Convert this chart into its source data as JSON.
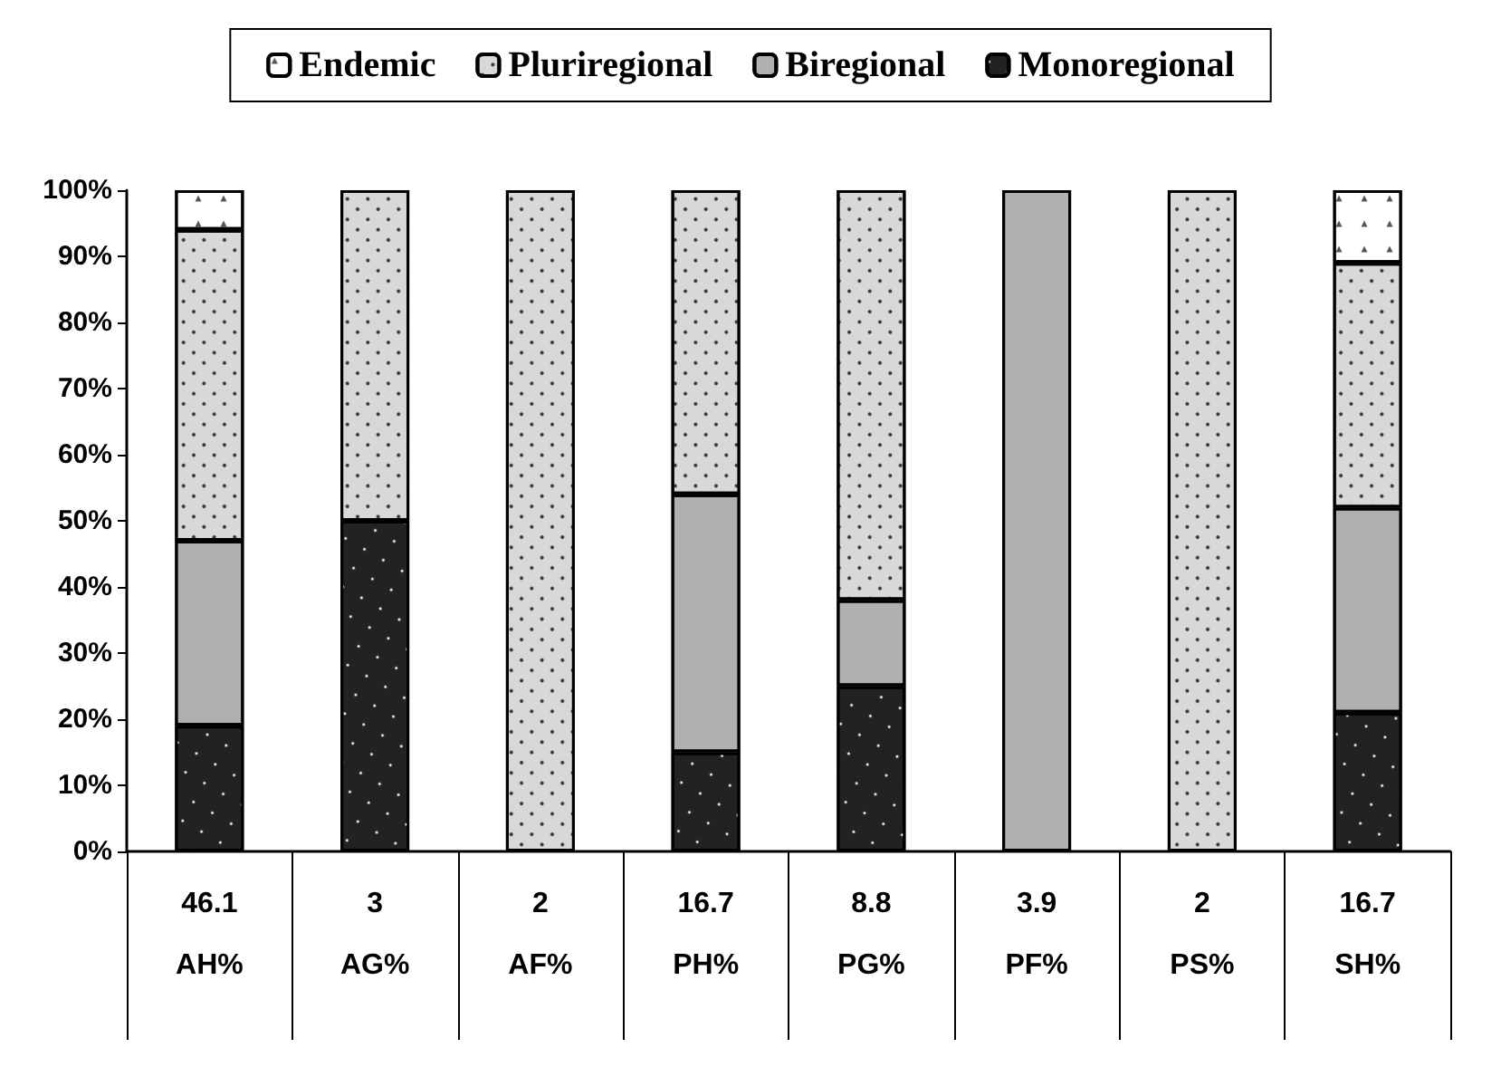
{
  "chart_data": {
    "type": "bar",
    "stacked": true,
    "categories": [
      "AH%",
      "AG%",
      "AF%",
      "PH%",
      "PG%",
      "PF%",
      "PS%",
      "SH%"
    ],
    "series": [
      {
        "name": "Monoregional",
        "color": "#222222",
        "values": [
          19,
          50,
          0,
          15,
          25,
          0,
          0,
          21
        ]
      },
      {
        "name": "Biregional",
        "color": "#b0b0b0",
        "values": [
          28,
          0,
          0,
          39,
          13,
          100,
          0,
          31
        ]
      },
      {
        "name": "Pluriregional",
        "color": "#d8d8d8",
        "values": [
          47,
          50,
          100,
          46,
          62,
          0,
          100,
          37
        ]
      },
      {
        "name": "Endemic",
        "color": "#ffffff",
        "values": [
          6,
          0,
          0,
          0,
          0,
          0,
          0,
          11
        ]
      }
    ],
    "ylim": [
      0,
      100
    ],
    "yticks": [
      {
        "value": 0,
        "label": "0%"
      },
      {
        "value": 10,
        "label": "10%"
      },
      {
        "value": 20,
        "label": "20%"
      },
      {
        "value": 30,
        "label": "30%"
      },
      {
        "value": 40,
        "label": "40%"
      },
      {
        "value": 50,
        "label": "50%"
      },
      {
        "value": 60,
        "label": "60%"
      },
      {
        "value": 70,
        "label": "70%"
      },
      {
        "value": 80,
        "label": "80%"
      },
      {
        "value": 90,
        "label": "90%"
      },
      {
        "value": 100,
        "label": "100%"
      }
    ],
    "annotations": [
      "46.1",
      "3",
      "2",
      "16.7",
      "8.8",
      "3.9",
      "2",
      "16.7"
    ],
    "grid": false,
    "legend": "top"
  }
}
